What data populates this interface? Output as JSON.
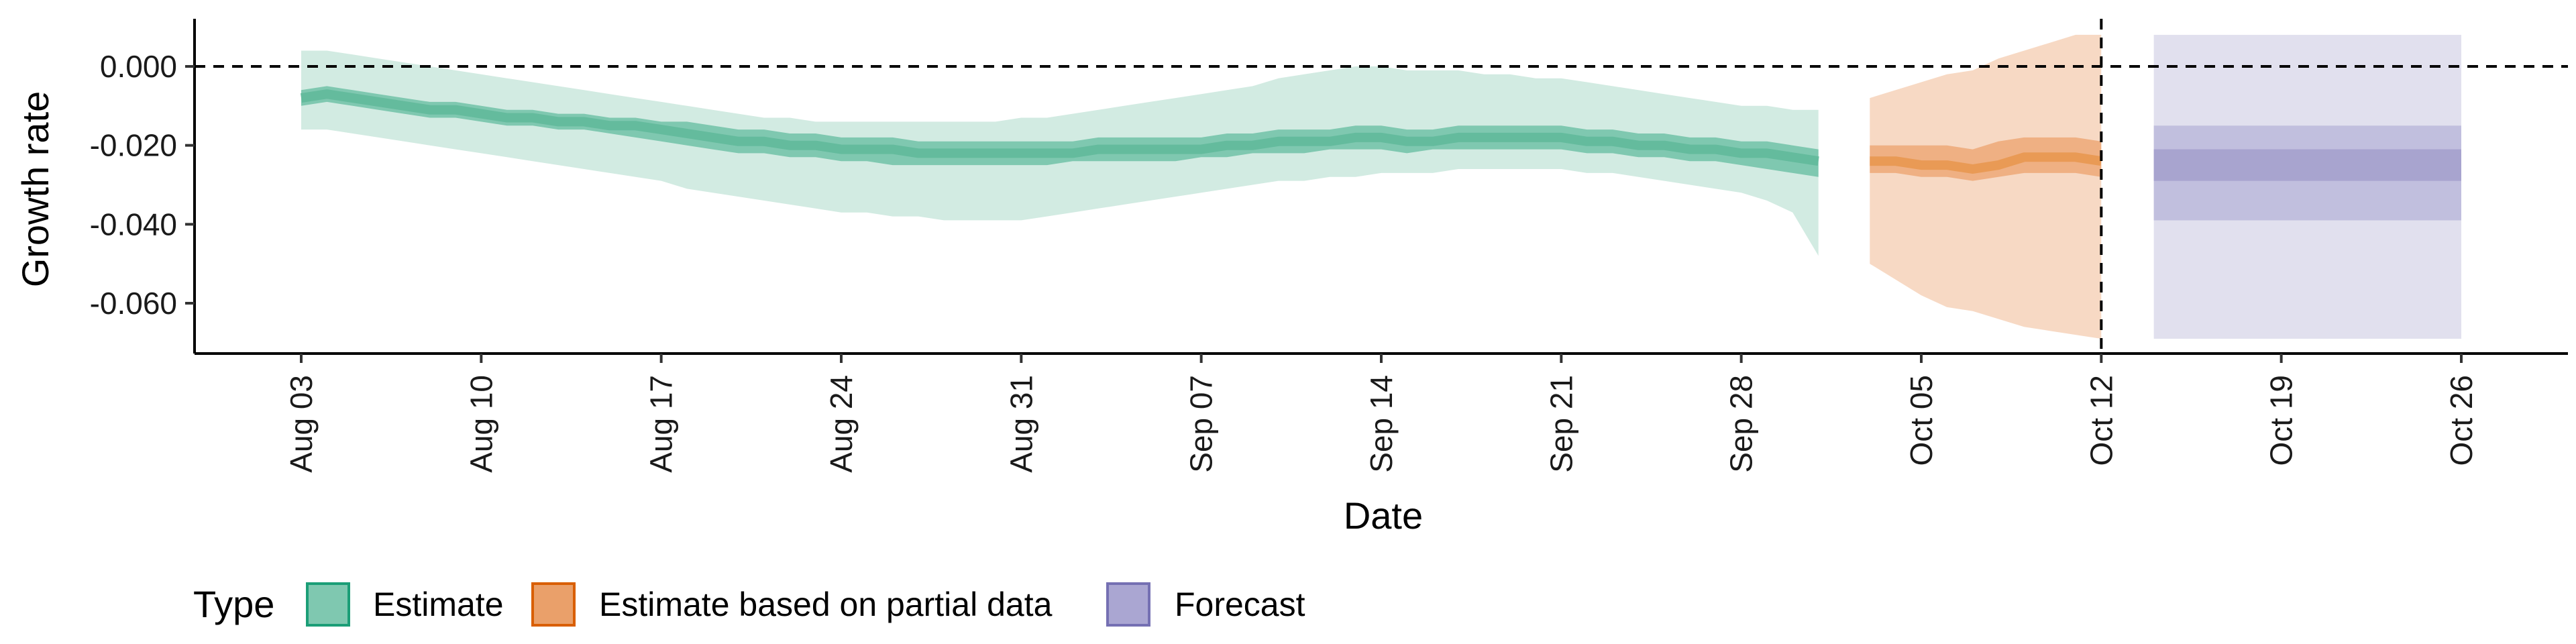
{
  "chart_data": {
    "type": "area",
    "xlabel": "Date",
    "ylabel": "Growth rate",
    "y_ticks": [
      "-0.060",
      "-0.040",
      "-0.020",
      "0.000"
    ],
    "y_tick_values": [
      -0.06,
      -0.04,
      -0.02,
      0.0
    ],
    "ylim": [
      -0.073,
      0.012
    ],
    "x_ticks": [
      "Aug 03",
      "Aug 10",
      "Aug 17",
      "Aug 24",
      "Aug 31",
      "Sep 07",
      "Sep 14",
      "Sep 21",
      "Sep 28",
      "Oct 05",
      "Oct 12",
      "Oct 19",
      "Oct 26"
    ],
    "x_tick_dates": [
      "2020-08-03",
      "2020-08-10",
      "2020-08-17",
      "2020-08-24",
      "2020-08-31",
      "2020-09-07",
      "2020-09-14",
      "2020-09-21",
      "2020-09-28",
      "2020-10-05",
      "2020-10-12",
      "2020-10-19",
      "2020-10-26"
    ],
    "xlim": [
      "2020-07-29",
      "2020-11-01"
    ],
    "reference_lines": [
      {
        "axis": "y",
        "value": 0.0,
        "style": "dashed"
      },
      {
        "axis": "x",
        "value": "2020-10-12",
        "style": "dashed"
      }
    ],
    "grid": false,
    "legend": {
      "title": "Type",
      "position": "bottom-left",
      "entries": [
        "Estimate",
        "Estimate based on partial data",
        "Forecast"
      ]
    },
    "series": [
      {
        "name": "Estimate",
        "color": "#1b9e77",
        "dates": [
          "2020-08-03",
          "2020-08-04",
          "2020-08-05",
          "2020-08-06",
          "2020-08-07",
          "2020-08-08",
          "2020-08-09",
          "2020-08-10",
          "2020-08-11",
          "2020-08-12",
          "2020-08-13",
          "2020-08-14",
          "2020-08-15",
          "2020-08-16",
          "2020-08-17",
          "2020-08-18",
          "2020-08-19",
          "2020-08-20",
          "2020-08-21",
          "2020-08-22",
          "2020-08-23",
          "2020-08-24",
          "2020-08-25",
          "2020-08-26",
          "2020-08-27",
          "2020-08-28",
          "2020-08-29",
          "2020-08-30",
          "2020-08-31",
          "2020-09-01",
          "2020-09-02",
          "2020-09-03",
          "2020-09-04",
          "2020-09-05",
          "2020-09-06",
          "2020-09-07",
          "2020-09-08",
          "2020-09-09",
          "2020-09-10",
          "2020-09-11",
          "2020-09-12",
          "2020-09-13",
          "2020-09-14",
          "2020-09-15",
          "2020-09-16",
          "2020-09-17",
          "2020-09-18",
          "2020-09-19",
          "2020-09-20",
          "2020-09-21",
          "2020-09-22",
          "2020-09-23",
          "2020-09-24",
          "2020-09-25",
          "2020-09-26",
          "2020-09-27",
          "2020-09-28",
          "2020-09-29",
          "2020-09-30",
          "2020-10-01"
        ],
        "median": [
          -0.008,
          -0.007,
          -0.008,
          -0.009,
          -0.01,
          -0.011,
          -0.011,
          -0.012,
          -0.013,
          -0.013,
          -0.014,
          -0.014,
          -0.015,
          -0.015,
          -0.016,
          -0.017,
          -0.018,
          -0.019,
          -0.019,
          -0.02,
          -0.02,
          -0.021,
          -0.021,
          -0.021,
          -0.022,
          -0.022,
          -0.022,
          -0.022,
          -0.022,
          -0.022,
          -0.022,
          -0.021,
          -0.021,
          -0.021,
          -0.021,
          -0.021,
          -0.02,
          -0.02,
          -0.019,
          -0.019,
          -0.019,
          -0.018,
          -0.018,
          -0.019,
          -0.019,
          -0.018,
          -0.018,
          -0.018,
          -0.018,
          -0.018,
          -0.019,
          -0.019,
          -0.02,
          -0.02,
          -0.021,
          -0.021,
          -0.022,
          -0.022,
          -0.023,
          -0.024
        ],
        "lower_50": [
          -0.01,
          -0.009,
          -0.01,
          -0.011,
          -0.012,
          -0.013,
          -0.013,
          -0.014,
          -0.015,
          -0.015,
          -0.016,
          -0.016,
          -0.017,
          -0.018,
          -0.019,
          -0.02,
          -0.021,
          -0.022,
          -0.022,
          -0.023,
          -0.023,
          -0.024,
          -0.024,
          -0.025,
          -0.025,
          -0.025,
          -0.025,
          -0.025,
          -0.025,
          -0.025,
          -0.024,
          -0.024,
          -0.024,
          -0.024,
          -0.024,
          -0.023,
          -0.023,
          -0.022,
          -0.022,
          -0.022,
          -0.021,
          -0.021,
          -0.021,
          -0.022,
          -0.021,
          -0.021,
          -0.021,
          -0.021,
          -0.021,
          -0.021,
          -0.022,
          -0.022,
          -0.023,
          -0.023,
          -0.024,
          -0.024,
          -0.025,
          -0.026,
          -0.027,
          -0.028
        ],
        "upper_50": [
          -0.006,
          -0.005,
          -0.006,
          -0.007,
          -0.008,
          -0.009,
          -0.009,
          -0.01,
          -0.011,
          -0.011,
          -0.012,
          -0.012,
          -0.013,
          -0.013,
          -0.014,
          -0.014,
          -0.015,
          -0.016,
          -0.016,
          -0.017,
          -0.017,
          -0.018,
          -0.018,
          -0.018,
          -0.019,
          -0.019,
          -0.019,
          -0.019,
          -0.019,
          -0.019,
          -0.019,
          -0.018,
          -0.018,
          -0.018,
          -0.018,
          -0.018,
          -0.017,
          -0.017,
          -0.016,
          -0.016,
          -0.016,
          -0.015,
          -0.015,
          -0.016,
          -0.016,
          -0.015,
          -0.015,
          -0.015,
          -0.015,
          -0.015,
          -0.016,
          -0.016,
          -0.017,
          -0.017,
          -0.018,
          -0.018,
          -0.019,
          -0.019,
          -0.02,
          -0.021
        ],
        "lower_90": [
          -0.016,
          -0.016,
          -0.017,
          -0.018,
          -0.019,
          -0.02,
          -0.021,
          -0.022,
          -0.023,
          -0.024,
          -0.025,
          -0.026,
          -0.027,
          -0.028,
          -0.029,
          -0.031,
          -0.032,
          -0.033,
          -0.034,
          -0.035,
          -0.036,
          -0.037,
          -0.037,
          -0.038,
          -0.038,
          -0.039,
          -0.039,
          -0.039,
          -0.039,
          -0.038,
          -0.037,
          -0.036,
          -0.035,
          -0.034,
          -0.033,
          -0.032,
          -0.031,
          -0.03,
          -0.029,
          -0.029,
          -0.028,
          -0.028,
          -0.027,
          -0.027,
          -0.027,
          -0.026,
          -0.026,
          -0.026,
          -0.026,
          -0.026,
          -0.027,
          -0.027,
          -0.028,
          -0.029,
          -0.03,
          -0.031,
          -0.032,
          -0.034,
          -0.037,
          -0.048
        ],
        "upper_90": [
          0.004,
          0.004,
          0.003,
          0.002,
          0.001,
          0.0,
          -0.001,
          -0.002,
          -0.003,
          -0.004,
          -0.005,
          -0.006,
          -0.007,
          -0.008,
          -0.009,
          -0.01,
          -0.011,
          -0.012,
          -0.013,
          -0.013,
          -0.014,
          -0.014,
          -0.014,
          -0.014,
          -0.014,
          -0.014,
          -0.014,
          -0.014,
          -0.013,
          -0.013,
          -0.012,
          -0.011,
          -0.01,
          -0.009,
          -0.008,
          -0.007,
          -0.006,
          -0.005,
          -0.003,
          -0.002,
          -0.001,
          0.0,
          0.0,
          -0.001,
          -0.001,
          -0.001,
          -0.002,
          -0.002,
          -0.003,
          -0.003,
          -0.004,
          -0.005,
          -0.006,
          -0.007,
          -0.008,
          -0.009,
          -0.01,
          -0.01,
          -0.011,
          -0.011
        ]
      },
      {
        "name": "Estimate based on partial data",
        "color": "#d95f02",
        "dates": [
          "2020-10-03",
          "2020-10-04",
          "2020-10-05",
          "2020-10-06",
          "2020-10-07",
          "2020-10-08",
          "2020-10-09",
          "2020-10-10",
          "2020-10-11",
          "2020-10-12"
        ],
        "median": [
          -0.024,
          -0.024,
          -0.025,
          -0.025,
          -0.026,
          -0.025,
          -0.023,
          -0.023,
          -0.023,
          -0.024
        ],
        "lower_50": [
          -0.027,
          -0.027,
          -0.028,
          -0.028,
          -0.029,
          -0.028,
          -0.027,
          -0.027,
          -0.027,
          -0.028
        ],
        "upper_50": [
          -0.02,
          -0.02,
          -0.02,
          -0.02,
          -0.021,
          -0.019,
          -0.018,
          -0.018,
          -0.018,
          -0.019
        ],
        "lower_90": [
          -0.05,
          -0.054,
          -0.058,
          -0.061,
          -0.062,
          -0.064,
          -0.066,
          -0.067,
          -0.068,
          -0.069
        ],
        "upper_90": [
          -0.008,
          -0.006,
          -0.004,
          -0.002,
          -0.001,
          0.002,
          0.004,
          0.006,
          0.008,
          0.008
        ]
      },
      {
        "name": "Forecast",
        "color": "#7570b3",
        "dates": [
          "2020-10-13",
          "2020-10-26"
        ],
        "median": [
          -0.025,
          -0.025
        ],
        "lower_50": [
          -0.029,
          -0.029
        ],
        "upper_50": [
          -0.021,
          -0.021
        ],
        "lower_75": [
          -0.039,
          -0.039
        ],
        "upper_75": [
          -0.015,
          -0.015
        ],
        "lower_90": [
          -0.069,
          -0.069
        ],
        "upper_90": [
          0.008,
          0.008
        ]
      }
    ]
  }
}
